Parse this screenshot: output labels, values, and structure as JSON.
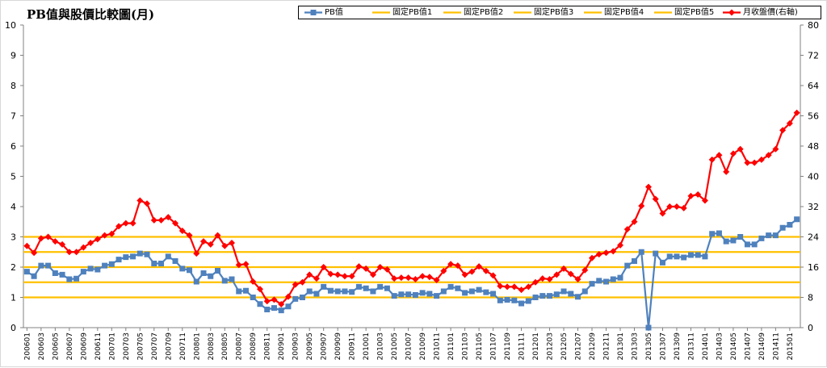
{
  "chart_data": {
    "type": "line",
    "title": "PB值與股價比較圖(月)",
    "legend_position": "top",
    "grid": false,
    "y_left": {
      "range": [
        0,
        10
      ],
      "ticks": [
        "0",
        "1",
        "2",
        "3",
        "4",
        "5",
        "6",
        "7",
        "8",
        "9",
        "10"
      ]
    },
    "y_right": {
      "range": [
        0,
        80
      ],
      "ticks": [
        "0",
        "8",
        "16",
        "24",
        "32",
        "40",
        "48",
        "56",
        "64",
        "72",
        "80"
      ]
    },
    "x_tick_labels": [
      "200601",
      "200603",
      "200605",
      "200607",
      "200609",
      "200611",
      "200701",
      "200703",
      "200705",
      "200707",
      "200709",
      "200711",
      "200801",
      "200803",
      "200805",
      "200807",
      "200809",
      "200811",
      "200901",
      "200903",
      "200905",
      "200907",
      "200909",
      "200911",
      "201001",
      "201003",
      "201005",
      "201007",
      "201009",
      "201011",
      "201101",
      "201103",
      "201105",
      "201107",
      "201109",
      "201111",
      "201201",
      "201203",
      "201205",
      "201207",
      "201209",
      "201211",
      "201301",
      "201303",
      "201305",
      "201307",
      "201309",
      "201311",
      "201401",
      "201403",
      "201405",
      "201407",
      "201409",
      "201411",
      "201501"
    ],
    "series": [
      {
        "name": "PB值",
        "axis": "left",
        "color": "#4f81bd",
        "marker": "square",
        "values": [
          1.85,
          1.7,
          2.05,
          2.05,
          1.8,
          1.75,
          1.6,
          1.62,
          1.85,
          1.95,
          1.92,
          2.05,
          2.1,
          2.25,
          2.33,
          2.35,
          2.45,
          2.42,
          2.12,
          2.12,
          2.35,
          2.2,
          1.95,
          1.9,
          1.52,
          1.8,
          1.7,
          1.88,
          1.55,
          1.6,
          1.2,
          1.22,
          1.0,
          0.78,
          0.6,
          0.65,
          0.57,
          0.7,
          0.95,
          1.0,
          1.2,
          1.12,
          1.35,
          1.22,
          1.2,
          1.2,
          1.18,
          1.35,
          1.3,
          1.2,
          1.35,
          1.3,
          1.05,
          1.1,
          1.1,
          1.08,
          1.15,
          1.12,
          1.05,
          1.2,
          1.35,
          1.3,
          1.15,
          1.2,
          1.25,
          1.17,
          1.12,
          0.9,
          0.92,
          0.9,
          0.8,
          0.88,
          1.0,
          1.05,
          1.05,
          1.1,
          1.2,
          1.12,
          1.02,
          1.2,
          1.45,
          1.55,
          1.52,
          1.6,
          1.65,
          2.05,
          2.2,
          2.5,
          0.0,
          2.45,
          2.15,
          2.35,
          2.35,
          2.32,
          2.4,
          2.4,
          2.35,
          3.1,
          3.12,
          2.85,
          2.88,
          3.0,
          2.75,
          2.75,
          2.95,
          3.05,
          3.05,
          3.3,
          3.4,
          3.58
        ]
      },
      {
        "name": "固定PB值1",
        "axis": "left",
        "color": "#ffc000",
        "values": [
          1.0
        ]
      },
      {
        "name": "固定PB值2",
        "axis": "left",
        "color": "#ffc000",
        "values": [
          1.5
        ]
      },
      {
        "name": "固定PB值3",
        "axis": "left",
        "color": "#ffc000",
        "values": [
          2.0
        ]
      },
      {
        "name": "固定PB值4",
        "axis": "left",
        "color": "#ffc000",
        "values": [
          2.5
        ]
      },
      {
        "name": "固定PB值5",
        "axis": "left",
        "color": "#ffc000",
        "values": [
          3.0
        ]
      },
      {
        "name": "月收盤價(右軸)",
        "axis": "right",
        "color": "#ff0000",
        "marker": "diamond",
        "values": [
          21.6,
          19.8,
          23.6,
          24.0,
          22.8,
          22.0,
          20.0,
          20.0,
          21.2,
          22.4,
          23.4,
          24.4,
          24.8,
          26.8,
          27.6,
          27.6,
          33.6,
          32.8,
          28.4,
          28.4,
          29.2,
          27.6,
          25.6,
          24.4,
          19.6,
          22.8,
          22.0,
          24.4,
          21.6,
          22.4,
          16.6,
          16.8,
          12.2,
          10.2,
          7.0,
          7.4,
          6.2,
          8.2,
          11.4,
          12.0,
          14.0,
          13.0,
          16.0,
          14.2,
          14.0,
          13.6,
          13.6,
          16.2,
          15.6,
          14.0,
          16.0,
          15.4,
          13.0,
          13.2,
          13.2,
          12.8,
          13.6,
          13.4,
          12.6,
          15.0,
          16.8,
          16.4,
          14.0,
          14.8,
          16.2,
          15.0,
          13.8,
          11.0,
          10.8,
          10.8,
          10.0,
          10.8,
          12.0,
          13.0,
          12.8,
          14.0,
          15.6,
          14.2,
          12.8,
          15.2,
          18.4,
          19.4,
          19.8,
          20.2,
          21.8,
          26.0,
          28.0,
          32.2,
          37.2,
          34.0,
          30.2,
          32.0,
          32.0,
          31.6,
          34.8,
          35.2,
          33.6,
          44.4,
          45.6,
          41.2,
          46.0,
          47.2,
          43.6,
          43.6,
          44.4,
          45.6,
          47.2,
          52.2,
          54.0,
          56.8
        ]
      }
    ]
  }
}
